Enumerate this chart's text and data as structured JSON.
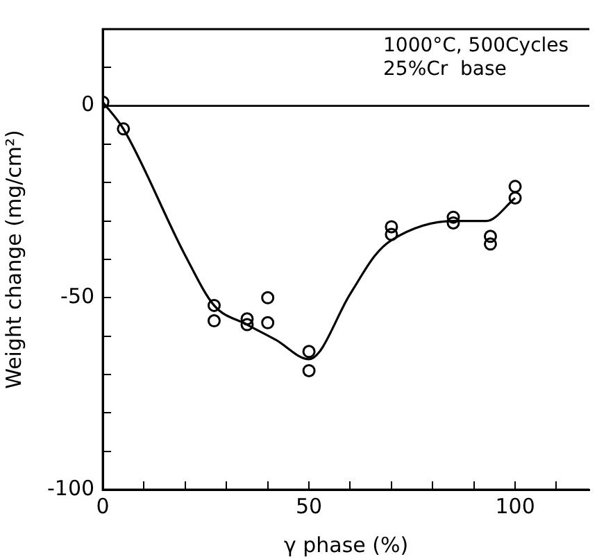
{
  "chart_data": {
    "type": "scatter",
    "xlabel": "γ phase (%)",
    "ylabel": "Weight change (mg/cm²)",
    "xlim": [
      0,
      118
    ],
    "ylim": [
      -100,
      20
    ],
    "xticks": [
      0,
      {
        "value": 10,
        "label": null
      },
      {
        "value": 20,
        "label": null
      },
      {
        "value": 30,
        "label": null
      },
      {
        "value": 40,
        "label": null
      },
      50,
      {
        "value": 60,
        "label": null
      },
      {
        "value": 70,
        "label": null
      },
      {
        "value": 80,
        "label": null
      },
      {
        "value": 90,
        "label": null
      },
      100,
      {
        "value": 110,
        "label": null
      }
    ],
    "yticks": [
      -100,
      {
        "value": -90,
        "label": null
      },
      {
        "value": -80,
        "label": null
      },
      {
        "value": -70,
        "label": null
      },
      {
        "value": -60,
        "label": null
      },
      -50,
      {
        "value": -40,
        "label": null
      },
      {
        "value": -30,
        "label": null
      },
      {
        "value": -20,
        "label": null
      },
      {
        "value": -10,
        "label": null
      },
      0,
      {
        "value": 10,
        "label": null
      }
    ],
    "grid": false,
    "legend": false,
    "marker": "circle",
    "ref_lines": [
      {
        "axis": "y",
        "value": 0,
        "color": "#000000"
      }
    ],
    "annotations": [
      "1000°C, 500Cycles",
      "25%Cr  base"
    ],
    "series": [
      {
        "type": "scatter",
        "color": "#000000",
        "x": [
          0,
          5,
          27,
          27,
          35,
          35,
          40,
          40,
          50,
          50,
          70,
          70,
          85,
          85,
          94,
          94,
          100,
          100
        ],
        "values": [
          1,
          -6,
          -52,
          -56,
          -55.5,
          -57,
          -50,
          -56.5,
          -64,
          -69,
          -31.5,
          -33.5,
          -29,
          -30.5,
          -34,
          -36,
          -21,
          -24
        ]
      },
      {
        "type": "line",
        "color": "#000000",
        "marker": "none",
        "x": [
          0,
          5,
          20,
          27,
          35,
          42,
          50,
          60,
          66,
          70,
          85,
          93,
          100
        ],
        "values": [
          1,
          -6,
          -39,
          -52,
          -57,
          -61,
          -66,
          -49,
          -39,
          -35,
          -30,
          -30,
          -24
        ]
      }
    ]
  }
}
